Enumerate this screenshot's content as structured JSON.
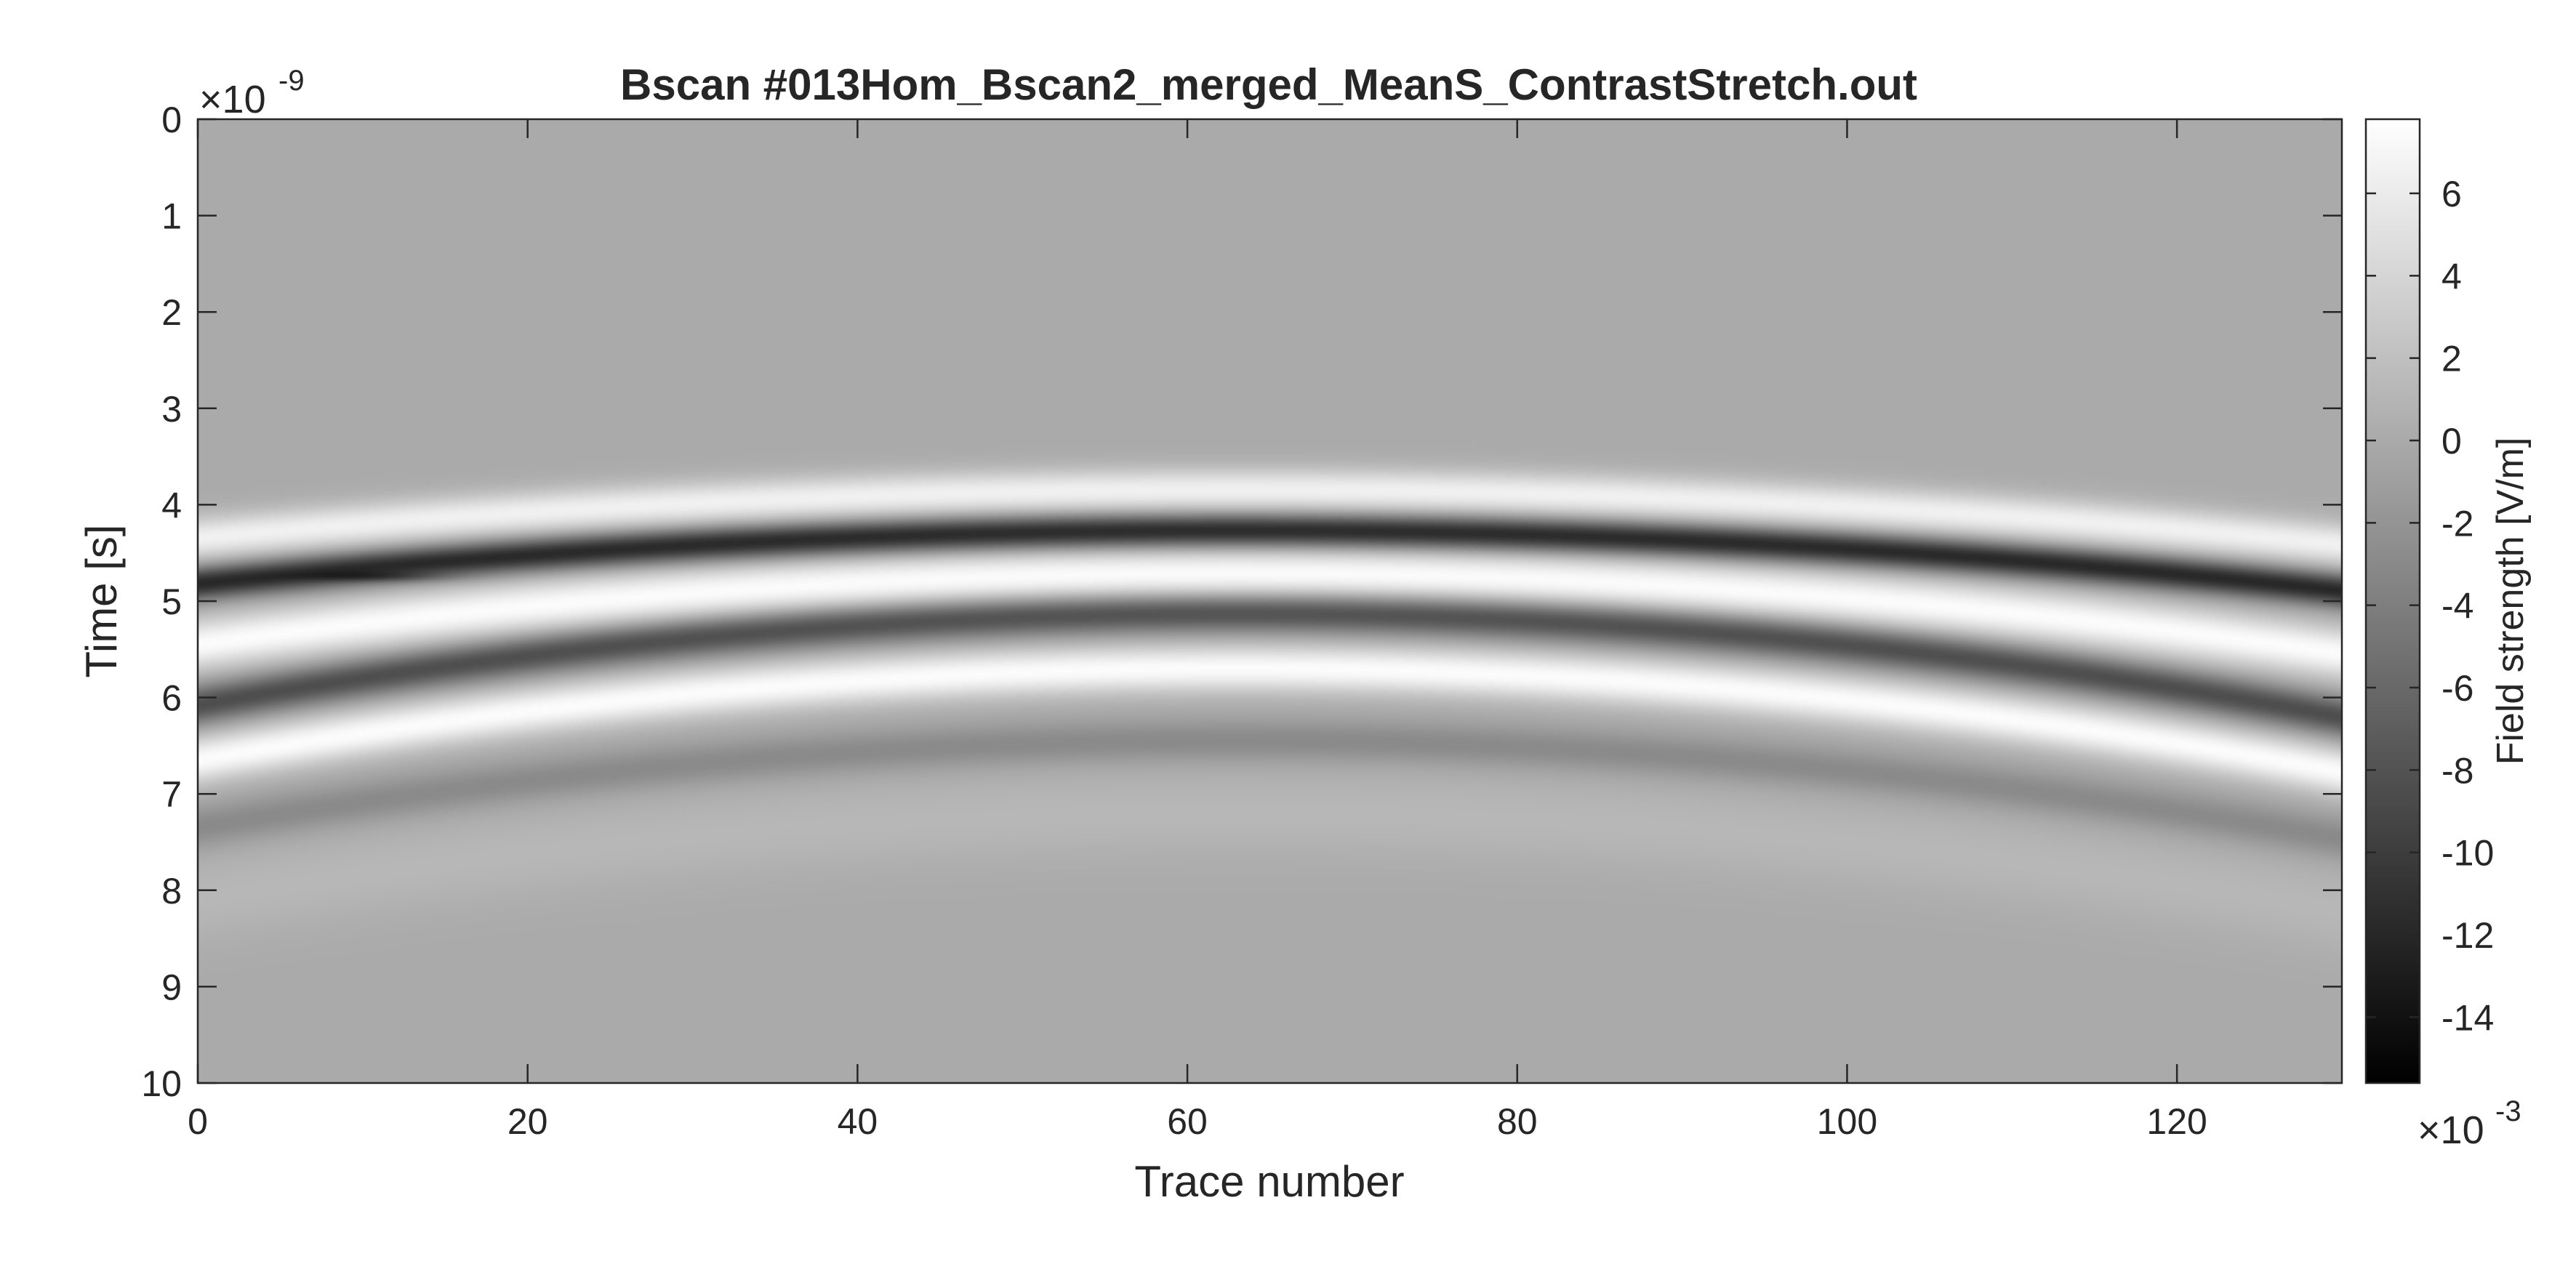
{
  "chart_data": {
    "type": "heatmap",
    "title": "Bscan #013Hom_Bscan2_merged_MeanS_ContrastStretch.out",
    "xlabel": "Trace number",
    "ylabel": "Time [s]",
    "y_exponent": "-9",
    "x_ticks": [
      "0",
      "20",
      "40",
      "60",
      "80",
      "100",
      "120"
    ],
    "y_ticks": [
      "0",
      "1",
      "2",
      "3",
      "4",
      "5",
      "6",
      "7",
      "8",
      "9",
      "10"
    ],
    "xlim": [
      0,
      130
    ],
    "ylim": [
      0,
      10
    ],
    "y_direction": "reverse",
    "colormap": "gray",
    "colorbar": {
      "label": "Field strength [V/m]",
      "exponent": "-3",
      "ticks": [
        "6",
        "4",
        "2",
        "0",
        "-2",
        "-4",
        "-6",
        "-8",
        "-10",
        "-12",
        "-14"
      ],
      "range": [
        -15.6,
        7.8
      ]
    },
    "background_level": 0,
    "bands": [
      {
        "role": "positive",
        "peak": 6.5,
        "t_edge": 4.35,
        "t_center": 3.85,
        "width": 0.22
      },
      {
        "role": "negative",
        "peak": -12.0,
        "t_edge": 4.82,
        "t_center": 4.27,
        "width": 0.17
      },
      {
        "role": "positive",
        "peak": 7.5,
        "t_edge": 5.45,
        "t_center": 4.72,
        "width": 0.26
      },
      {
        "role": "negative",
        "peak": -8.5,
        "t_edge": 6.08,
        "t_center": 5.12,
        "width": 0.2
      },
      {
        "role": "positive",
        "peak": 7.5,
        "t_edge": 6.65,
        "t_center": 5.7,
        "width": 0.24
      },
      {
        "role": "negative",
        "peak": -3.0,
        "t_edge": 7.35,
        "t_center": 6.45,
        "width": 0.22
      },
      {
        "role": "positive",
        "peak": 1.2,
        "t_edge": 8.1,
        "t_center": 7.2,
        "width": 0.45
      }
    ],
    "hyperbola_apex_trace": 63,
    "minimum_value": -15.6,
    "minimum_location": {
      "trace": 11,
      "time": 4.75
    }
  }
}
